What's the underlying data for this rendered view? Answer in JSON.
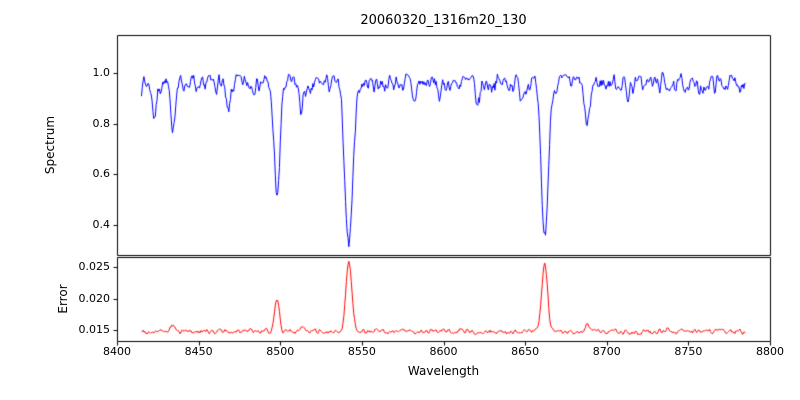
{
  "chart_data": {
    "type": "line",
    "title": "20060320_1316m20_130",
    "xlabel": "Wavelength",
    "x_range": [
      8400,
      8800
    ],
    "x_data_range": [
      8415,
      8785
    ],
    "x_ticks": [
      "8400",
      "8450",
      "8500",
      "8550",
      "8600",
      "8650",
      "8700",
      "8750",
      "8800"
    ],
    "legend": "none",
    "grid": false,
    "panels": [
      {
        "name": "spectrum",
        "ylabel": "Spectrum",
        "ylim": [
          0.28,
          1.15
        ],
        "y_ticks": [
          "0.4",
          "0.6",
          "0.8",
          "1.0"
        ],
        "line_color": "#0000ff",
        "continuum": 0.96,
        "noise_amplitude": 0.055,
        "absorption_lines": [
          {
            "center": 8423,
            "depth": 0.13,
            "sigma": 1.4
          },
          {
            "center": 8434,
            "depth": 0.17,
            "sigma": 1.5
          },
          {
            "center": 8450,
            "depth": 0.06,
            "sigma": 1.2
          },
          {
            "center": 8468,
            "depth": 0.13,
            "sigma": 1.4
          },
          {
            "center": 8498,
            "depth": 0.47,
            "sigma": 1.8
          },
          {
            "center": 8513,
            "depth": 0.11,
            "sigma": 1.3
          },
          {
            "center": 8518,
            "depth": 0.07,
            "sigma": 1.1
          },
          {
            "center": 8542,
            "depth": 0.66,
            "sigma": 2.4
          },
          {
            "center": 8582,
            "depth": 0.07,
            "sigma": 1.2
          },
          {
            "center": 8598,
            "depth": 0.06,
            "sigma": 1.1
          },
          {
            "center": 8621,
            "depth": 0.09,
            "sigma": 1.3
          },
          {
            "center": 8648,
            "depth": 0.05,
            "sigma": 1.1
          },
          {
            "center": 8662,
            "depth": 0.63,
            "sigma": 2.2
          },
          {
            "center": 8688,
            "depth": 0.19,
            "sigma": 1.5
          },
          {
            "center": 8713,
            "depth": 0.05,
            "sigma": 1.1
          },
          {
            "center": 8742,
            "depth": 0.05,
            "sigma": 1.1
          },
          {
            "center": 8757,
            "depth": 0.06,
            "sigma": 1.1
          }
        ]
      },
      {
        "name": "error",
        "ylabel": "Error",
        "ylim": [
          0.0133,
          0.0266
        ],
        "y_ticks": [
          "0.015",
          "0.020",
          "0.025"
        ],
        "line_color": "#ff0000",
        "baseline": 0.0148,
        "noise_amplitude": 0.0006,
        "peaks": [
          {
            "center": 8434,
            "amplitude": 0.0009,
            "sigma": 1.4
          },
          {
            "center": 8498,
            "amplitude": 0.0052,
            "sigma": 1.5
          },
          {
            "center": 8513,
            "amplitude": 0.0007,
            "sigma": 1.2
          },
          {
            "center": 8542,
            "amplitude": 0.0112,
            "sigma": 1.8
          },
          {
            "center": 8662,
            "amplitude": 0.0105,
            "sigma": 1.8
          },
          {
            "center": 8688,
            "amplitude": 0.0012,
            "sigma": 1.4
          }
        ]
      }
    ]
  }
}
